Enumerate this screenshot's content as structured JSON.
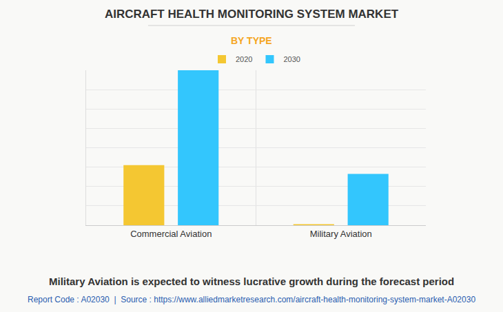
{
  "chart_data": {
    "type": "bar",
    "title": "AIRCRAFT HEALTH MONITORING SYSTEM MARKET",
    "subtitle": "BY TYPE",
    "categories": [
      "Commercial Aviation",
      "Military Aviation"
    ],
    "series": [
      {
        "name": "2020",
        "color": "#f4c732",
        "values": [
          3.1,
          0.05
        ]
      },
      {
        "name": "2030",
        "color": "#33c6fd",
        "values": [
          8.0,
          2.65
        ]
      }
    ],
    "ylim": [
      0,
      8
    ],
    "yticks": [
      0,
      1,
      2,
      3,
      4,
      5,
      6,
      7,
      8
    ],
    "grid": true,
    "legend": "top",
    "tick_labels": "x",
    "annotations": [
      "Military Aviation is expected to witness lucrative growth during the forecast period",
      "Report Code : A02030  |  Source : https://www.alliedmarketresearch.com/aircraft-health-monitoring-system-market-A02030"
    ]
  }
}
